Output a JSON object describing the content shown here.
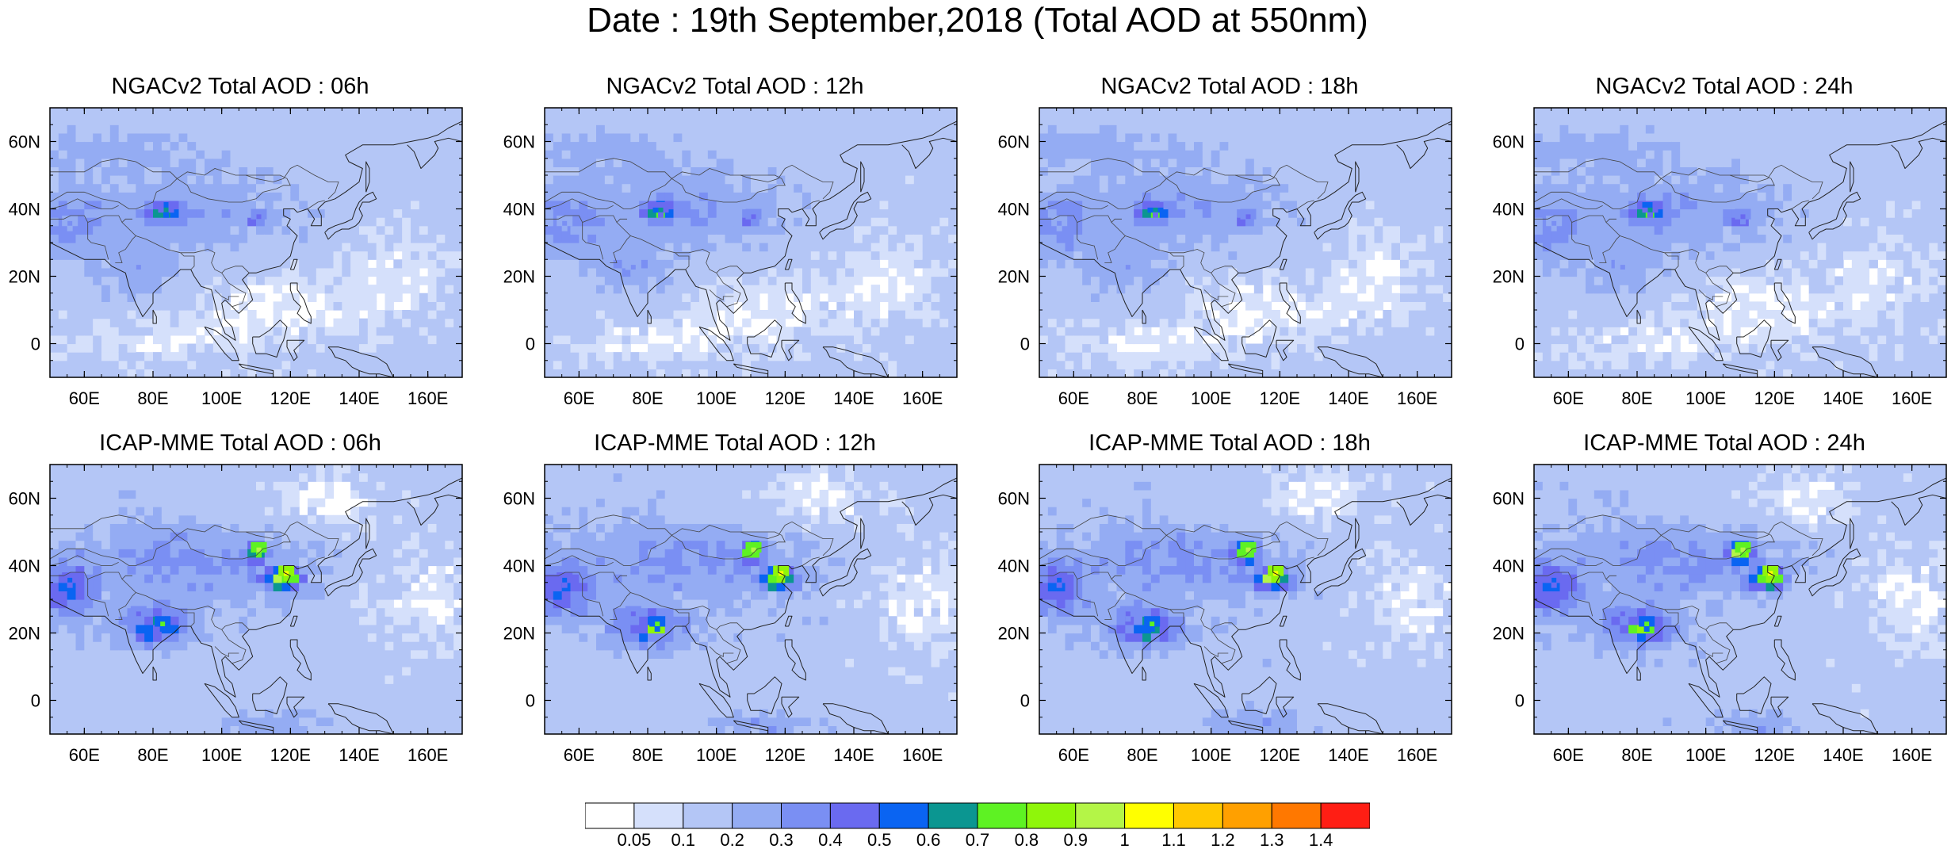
{
  "title": "Date : 19th September,2018 (Total AOD at 550nm)",
  "map": {
    "lon_range": [
      50,
      170
    ],
    "lat_range": [
      -10,
      70
    ],
    "lon_ticks": [
      60,
      80,
      100,
      120,
      140,
      160
    ],
    "lon_tick_labels": [
      "60E",
      "80E",
      "100E",
      "120E",
      "140E",
      "160E"
    ],
    "lat_ticks": [
      0,
      20,
      40,
      60
    ],
    "lat_tick_labels": [
      "0",
      "20N",
      "40N",
      "60N"
    ]
  },
  "panels": [
    {
      "title": "NGACv2 Total AOD : 06h",
      "model": "NGACv2",
      "hour": 6
    },
    {
      "title": "NGACv2 Total AOD : 12h",
      "model": "NGACv2",
      "hour": 12
    },
    {
      "title": "NGACv2 Total AOD : 18h",
      "model": "NGACv2",
      "hour": 18
    },
    {
      "title": "NGACv2 Total AOD : 24h",
      "model": "NGACv2",
      "hour": 24
    },
    {
      "title": "ICAP-MME Total AOD : 06h",
      "model": "ICAP-MME",
      "hour": 6
    },
    {
      "title": "ICAP-MME Total AOD : 12h",
      "model": "ICAP-MME",
      "hour": 12
    },
    {
      "title": "ICAP-MME Total AOD : 18h",
      "model": "ICAP-MME",
      "hour": 18
    },
    {
      "title": "ICAP-MME Total AOD : 24h",
      "model": "ICAP-MME",
      "hour": 24
    }
  ],
  "colorbar": {
    "levels": [
      "0.05",
      "0.1",
      "0.2",
      "0.3",
      "0.4",
      "0.5",
      "0.6",
      "0.7",
      "0.8",
      "0.9",
      "1",
      "1.1",
      "1.2",
      "1.3",
      "1.4"
    ],
    "colors": [
      "#ffffff",
      "#d5e0fb",
      "#b4c6f6",
      "#94acf3",
      "#7a8ff3",
      "#6a6af0",
      "#0a64f2",
      "#0b9691",
      "#5ef223",
      "#8ff60a",
      "#b4f547",
      "#ffff00",
      "#ffc800",
      "#ffa000",
      "#ff7800",
      "#ff1e14"
    ]
  },
  "aod_features": {
    "NGACv2": [
      {
        "lon": 83,
        "lat": 39,
        "value": 0.6
      },
      {
        "lon": 110,
        "lat": 37,
        "value": 0.4
      },
      {
        "lon": 55,
        "lat": 35,
        "value": 0.3
      },
      {
        "lon": 75,
        "lat": 22,
        "value": 0.3
      }
    ],
    "ICAP-MME": [
      {
        "lon": 118,
        "lat": 37,
        "value": 1.0
      },
      {
        "lon": 110,
        "lat": 44,
        "value": 0.9
      },
      {
        "lon": 82,
        "lat": 22,
        "value": 0.7
      },
      {
        "lon": 55,
        "lat": 35,
        "value": 0.5
      },
      {
        "lon": 75,
        "lat": 25,
        "value": 0.4
      }
    ]
  }
}
